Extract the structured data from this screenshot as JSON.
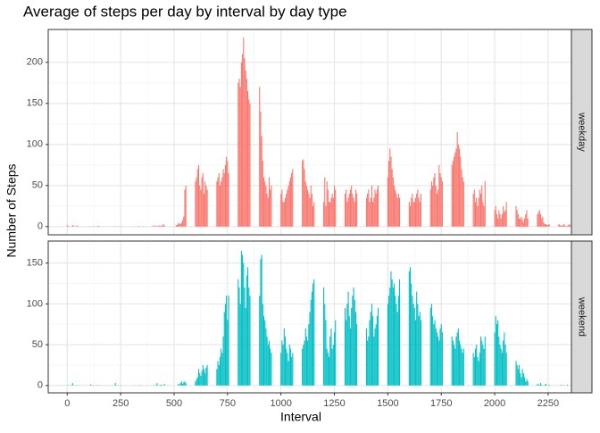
{
  "chart_data": {
    "type": "bar",
    "title": "Average of steps per day by interval by day type",
    "xlabel": "Interval",
    "ylabel": "Number of Steps",
    "x": [
      0,
      5,
      10,
      15,
      20,
      25,
      30,
      35,
      40,
      45,
      50,
      55,
      100,
      105,
      110,
      115,
      120,
      125,
      130,
      135,
      140,
      145,
      150,
      155,
      200,
      205,
      210,
      215,
      220,
      225,
      230,
      235,
      240,
      245,
      250,
      255,
      300,
      305,
      310,
      315,
      320,
      325,
      330,
      335,
      340,
      345,
      350,
      355,
      400,
      405,
      410,
      415,
      420,
      425,
      430,
      435,
      440,
      445,
      450,
      455,
      500,
      505,
      510,
      515,
      520,
      525,
      530,
      535,
      540,
      545,
      550,
      555,
      600,
      605,
      610,
      615,
      620,
      625,
      630,
      635,
      640,
      645,
      650,
      655,
      700,
      705,
      710,
      715,
      720,
      725,
      730,
      735,
      740,
      745,
      750,
      755,
      800,
      805,
      810,
      815,
      820,
      825,
      830,
      835,
      840,
      845,
      850,
      855,
      900,
      905,
      910,
      915,
      920,
      925,
      930,
      935,
      940,
      945,
      950,
      955,
      1000,
      1005,
      1010,
      1015,
      1020,
      1025,
      1030,
      1035,
      1040,
      1045,
      1050,
      1055,
      1100,
      1105,
      1110,
      1115,
      1120,
      1125,
      1130,
      1135,
      1140,
      1145,
      1150,
      1155,
      1200,
      1205,
      1210,
      1215,
      1220,
      1225,
      1230,
      1235,
      1240,
      1245,
      1250,
      1255,
      1300,
      1305,
      1310,
      1315,
      1320,
      1325,
      1330,
      1335,
      1340,
      1345,
      1350,
      1355,
      1400,
      1405,
      1410,
      1415,
      1420,
      1425,
      1430,
      1435,
      1440,
      1445,
      1450,
      1455,
      1500,
      1505,
      1510,
      1515,
      1520,
      1525,
      1530,
      1535,
      1540,
      1545,
      1550,
      1555,
      1600,
      1605,
      1610,
      1615,
      1620,
      1625,
      1630,
      1635,
      1640,
      1645,
      1650,
      1655,
      1700,
      1705,
      1710,
      1715,
      1720,
      1725,
      1730,
      1735,
      1740,
      1745,
      1750,
      1755,
      1800,
      1805,
      1810,
      1815,
      1820,
      1825,
      1830,
      1835,
      1840,
      1845,
      1850,
      1855,
      1900,
      1905,
      1910,
      1915,
      1920,
      1925,
      1930,
      1935,
      1940,
      1945,
      1950,
      1955,
      2000,
      2005,
      2010,
      2015,
      2020,
      2025,
      2030,
      2035,
      2040,
      2045,
      2050,
      2055,
      2100,
      2105,
      2110,
      2115,
      2120,
      2125,
      2130,
      2135,
      2140,
      2145,
      2150,
      2155,
      2200,
      2205,
      2210,
      2215,
      2220,
      2225,
      2230,
      2235,
      2240,
      2245,
      2250,
      2255,
      2300,
      2305,
      2310,
      2315,
      2320,
      2325,
      2330,
      2335,
      2340,
      2345,
      2350,
      2355
    ],
    "xlim": [
      -89,
      2359
    ],
    "xticks": [
      0,
      250,
      500,
      750,
      1000,
      1250,
      1500,
      1750,
      2000,
      2250
    ],
    "grid": true,
    "series": [
      {
        "name": "weekday",
        "color": "#F8766D",
        "ylim": [
          -10,
          240
        ],
        "yticks": [
          0,
          50,
          100,
          150,
          200
        ],
        "values": [
          2,
          0.5,
          0.2,
          0.2,
          0.1,
          2,
          0.5,
          0.7,
          0,
          1.5,
          0.3,
          0.2,
          0.4,
          0.1,
          0.2,
          0,
          0.3,
          0.5,
          0,
          0,
          0.3,
          1.1,
          0.3,
          0.2,
          0.2,
          0,
          0.1,
          0,
          0.2,
          0.4,
          0,
          0.1,
          0.3,
          0,
          0.1,
          0.5,
          0.2,
          0,
          0,
          0.1,
          0.3,
          0,
          0.2,
          0.6,
          0,
          0.1,
          0,
          0.3,
          1.2,
          0.2,
          1.5,
          0.3,
          0.5,
          0.8,
          1.3,
          0.5,
          0.9,
          1.5,
          3,
          1,
          0,
          0,
          2,
          2,
          4,
          4,
          3,
          5,
          8,
          12,
          45,
          50,
          55,
          60,
          70,
          75,
          50,
          45,
          60,
          65,
          40,
          55,
          50,
          45,
          55,
          60,
          65,
          50,
          55,
          60,
          70,
          65,
          75,
          85,
          80,
          65,
          175,
          180,
          170,
          200,
          210,
          230,
          205,
          190,
          180,
          165,
          155,
          150,
          170,
          140,
          110,
          80,
          60,
          55,
          50,
          40,
          35,
          60,
          45,
          50,
          40,
          45,
          30,
          30,
          35,
          40,
          45,
          50,
          55,
          60,
          65,
          70,
          80,
          82,
          70,
          55,
          50,
          45,
          40,
          35,
          50,
          40,
          25,
          30,
          30,
          60,
          25,
          55,
          45,
          30,
          30,
          35,
          40,
          35,
          50,
          45,
          40,
          45,
          30,
          35,
          40,
          45,
          50,
          40,
          35,
          30,
          45,
          40,
          35,
          40,
          45,
          30,
          35,
          50,
          30,
          35,
          45,
          40,
          45,
          50,
          60,
          80,
          95,
          85,
          70,
          60,
          50,
          45,
          40,
          35,
          40,
          35,
          30,
          25,
          35,
          40,
          30,
          30,
          35,
          40,
          45,
          35,
          30,
          40,
          45,
          55,
          50,
          60,
          65,
          50,
          40,
          45,
          75,
          65,
          60,
          55,
          75,
          80,
          85,
          90,
          95,
          115,
          100,
          95,
          85,
          70,
          60,
          55,
          40,
          45,
          30,
          35,
          25,
          35,
          45,
          40,
          50,
          30,
          25,
          55,
          20,
          25,
          15,
          10,
          20,
          15,
          10,
          15,
          25,
          18,
          20,
          30,
          25,
          20,
          15,
          10,
          10,
          12,
          8,
          5,
          10,
          15,
          20,
          10,
          15,
          18,
          20,
          15,
          10,
          12,
          5,
          3,
          3,
          2,
          2,
          3,
          3,
          2,
          1,
          1,
          2,
          3,
          1,
          0.5,
          1,
          2,
          3,
          1
        ]
      },
      {
        "name": "weekend",
        "color": "#00BFC4",
        "ylim": [
          -9,
          177
        ],
        "yticks": [
          0,
          50,
          100,
          150
        ],
        "values": [
          0.2,
          0.3,
          0.1,
          0,
          0.4,
          3,
          0,
          0.2,
          0.1,
          0.5,
          0,
          0.3,
          0.1,
          0,
          1.5,
          0,
          0.3,
          0,
          0.1,
          0.2,
          0,
          0.4,
          0,
          0.1,
          0,
          0.2,
          0,
          0.1,
          0,
          3,
          0.3,
          0,
          0.2,
          0,
          0.5,
          0,
          0,
          0.1,
          0,
          0.3,
          0,
          0.2,
          0,
          0,
          0.4,
          0,
          0.1,
          0,
          0.2,
          0,
          0.6,
          0,
          3,
          0.2,
          0,
          0.5,
          1,
          0.4,
          0,
          2,
          0,
          0,
          0,
          0,
          2,
          1,
          3,
          5,
          2,
          4,
          5,
          3,
          5,
          8,
          10,
          20,
          15,
          12,
          18,
          25,
          20,
          15,
          22,
          25,
          20,
          30,
          25,
          35,
          45,
          40,
          60,
          90,
          100,
          110,
          80,
          110,
          130,
          120,
          100,
          165,
          160,
          150,
          120,
          95,
          135,
          145,
          120,
          110,
          110,
          155,
          160,
          100,
          85,
          80,
          70,
          60,
          50,
          55,
          45,
          40,
          40,
          55,
          50,
          70,
          60,
          45,
          40,
          30,
          50,
          45,
          35,
          40,
          45,
          50,
          55,
          70,
          60,
          55,
          75,
          90,
          105,
          115,
          125,
          130,
          120,
          100,
          80,
          45,
          40,
          35,
          60,
          70,
          45,
          50,
          65,
          80,
          95,
          80,
          100,
          115,
          85,
          70,
          95,
          110,
          120,
          105,
          90,
          75,
          70,
          55,
          60,
          80,
          90,
          100,
          85,
          60,
          70,
          75,
          85,
          95,
          100,
          110,
          120,
          140,
          130,
          120,
          125,
          110,
          100,
          90,
          110,
          130,
          140,
          145,
          125,
          110,
          100,
          95,
          80,
          115,
          100,
          85,
          90,
          80,
          95,
          100,
          85,
          75,
          80,
          70,
          65,
          60,
          55,
          70,
          75,
          65,
          60,
          55,
          50,
          45,
          60,
          65,
          70,
          55,
          50,
          45,
          40,
          45,
          40,
          35,
          45,
          50,
          35,
          30,
          40,
          60,
          55,
          50,
          45,
          60,
          65,
          85,
          75,
          80,
          60,
          50,
          45,
          40,
          55,
          65,
          50,
          40,
          30,
          25,
          20,
          25,
          15,
          10,
          20,
          15,
          10,
          5,
          8,
          5,
          2,
          1,
          0.5,
          3,
          1,
          0,
          0,
          1,
          2,
          0,
          0,
          1,
          0,
          0,
          1,
          0,
          0,
          0.5,
          0,
          0,
          1,
          0,
          0,
          0
        ]
      }
    ]
  }
}
